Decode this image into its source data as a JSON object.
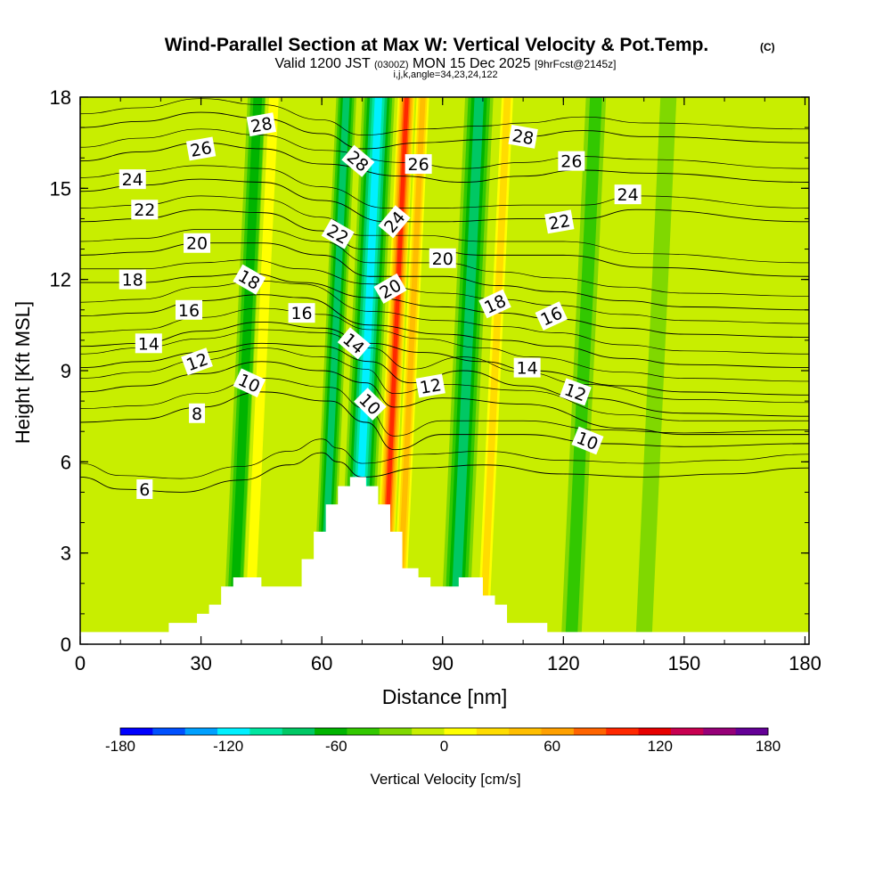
{
  "chart_data": {
    "type": "heatmap",
    "title": "Wind-Parallel Section at Max W: Vertical Velocity & Pot.Temp.",
    "title_mark": "(C)",
    "subtitle_main_a": "Valid 1200 JST",
    "subtitle_zulu": "(0300Z)",
    "subtitle_main_b": "MON 15 Dec 2025",
    "subtitle_fcst": "[9hrFcst@2145z]",
    "subtitle_indices": "i,j,k,angle=34,23,24,122",
    "xlabel": "Distance [nm]",
    "ylabel": "Height [Kft MSL]",
    "xlim": [
      0,
      181
    ],
    "ylim": [
      0,
      18
    ],
    "x_ticks": [
      0,
      30,
      60,
      90,
      120,
      150,
      180
    ],
    "y_ticks": [
      0,
      3,
      6,
      9,
      12,
      15,
      18
    ],
    "colorbar": {
      "label": "Vertical Velocity [cm/s]",
      "range": [
        -180,
        180
      ],
      "step": 20,
      "tick_values": [
        -180,
        -120,
        -60,
        0,
        60,
        120,
        180
      ],
      "colors": [
        "#0000ff",
        "#0050ff",
        "#00a0ff",
        "#00f0ff",
        "#00e6a0",
        "#00c864",
        "#00b400",
        "#32c800",
        "#80d800",
        "#c8ee00",
        "#ffff00",
        "#ffdc00",
        "#ffbe00",
        "#ffa000",
        "#ff6400",
        "#ff2800",
        "#e60000",
        "#c80050",
        "#960078",
        "#640096"
      ]
    },
    "wind_velocity_bands": [
      {
        "x_center": 41,
        "width": 5,
        "value": -55
      },
      {
        "x_center": 45,
        "width": 4,
        "value": 45
      },
      {
        "x_center": 63,
        "width": 5,
        "value": -70
      },
      {
        "x_center": 71,
        "width": 8,
        "value": -120
      },
      {
        "x_center": 78,
        "width": 5,
        "value": 140
      },
      {
        "x_center": 82,
        "width": 4,
        "value": 70
      },
      {
        "x_center": 96,
        "width": 7,
        "value": -70
      },
      {
        "x_center": 103,
        "width": 4,
        "value": 60
      },
      {
        "x_center": 125,
        "width": 5,
        "value": -30
      },
      {
        "x_center": 143,
        "width": 4,
        "value": -25
      }
    ],
    "terrain": [
      {
        "x": 0,
        "h": 0.4
      },
      {
        "x": 22,
        "h": 0.4
      },
      {
        "x": 22,
        "h": 0.7
      },
      {
        "x": 29,
        "h": 0.7
      },
      {
        "x": 29,
        "h": 1.0
      },
      {
        "x": 32,
        "h": 1.0
      },
      {
        "x": 32,
        "h": 1.3
      },
      {
        "x": 35,
        "h": 1.3
      },
      {
        "x": 35,
        "h": 1.9
      },
      {
        "x": 38,
        "h": 1.9
      },
      {
        "x": 38,
        "h": 2.2
      },
      {
        "x": 45,
        "h": 2.2
      },
      {
        "x": 45,
        "h": 1.9
      },
      {
        "x": 55,
        "h": 1.9
      },
      {
        "x": 55,
        "h": 2.8
      },
      {
        "x": 58,
        "h": 2.8
      },
      {
        "x": 58,
        "h": 3.7
      },
      {
        "x": 61,
        "h": 3.7
      },
      {
        "x": 61,
        "h": 4.6
      },
      {
        "x": 64,
        "h": 4.6
      },
      {
        "x": 64,
        "h": 5.2
      },
      {
        "x": 67,
        "h": 5.2
      },
      {
        "x": 67,
        "h": 5.5
      },
      {
        "x": 71,
        "h": 5.5
      },
      {
        "x": 71,
        "h": 5.2
      },
      {
        "x": 74,
        "h": 5.2
      },
      {
        "x": 74,
        "h": 4.6
      },
      {
        "x": 77,
        "h": 4.6
      },
      {
        "x": 77,
        "h": 3.7
      },
      {
        "x": 80,
        "h": 3.7
      },
      {
        "x": 80,
        "h": 2.5
      },
      {
        "x": 84,
        "h": 2.5
      },
      {
        "x": 84,
        "h": 2.2
      },
      {
        "x": 87,
        "h": 2.2
      },
      {
        "x": 87,
        "h": 1.9
      },
      {
        "x": 94,
        "h": 1.9
      },
      {
        "x": 94,
        "h": 2.2
      },
      {
        "x": 100,
        "h": 2.2
      },
      {
        "x": 100,
        "h": 1.6
      },
      {
        "x": 103,
        "h": 1.6
      },
      {
        "x": 103,
        "h": 1.3
      },
      {
        "x": 106,
        "h": 1.3
      },
      {
        "x": 106,
        "h": 0.7
      },
      {
        "x": 116,
        "h": 0.7
      },
      {
        "x": 116,
        "h": 0.4
      },
      {
        "x": 181,
        "h": 0.4
      }
    ],
    "theta_contours": [
      {
        "value": 6,
        "points": [
          [
            0,
            5.5
          ],
          [
            10,
            5.1
          ],
          [
            25,
            5.0
          ],
          [
            40,
            5.4
          ],
          [
            52,
            5.9
          ],
          [
            60,
            6.3
          ],
          [
            64,
            6.0
          ],
          [
            70,
            5.5
          ],
          [
            85,
            5.8
          ],
          [
            100,
            5.9
          ],
          [
            120,
            5.6
          ],
          [
            140,
            5.5
          ],
          [
            160,
            5.6
          ],
          [
            181,
            5.8
          ]
        ]
      },
      {
        "value": 8,
        "points": [
          [
            0,
            7.3
          ],
          [
            15,
            7.4
          ],
          [
            30,
            7.8
          ],
          [
            45,
            8.3
          ],
          [
            62,
            8.0
          ],
          [
            71,
            7.3
          ],
          [
            78,
            6.4
          ],
          [
            90,
            6.9
          ],
          [
            110,
            6.9
          ],
          [
            130,
            6.6
          ],
          [
            150,
            6.5
          ],
          [
            181,
            6.6
          ]
        ]
      },
      {
        "value": 10,
        "points": [
          [
            0,
            8.3
          ],
          [
            15,
            8.5
          ],
          [
            30,
            8.9
          ],
          [
            45,
            9.3
          ],
          [
            60,
            9.0
          ],
          [
            71,
            8.6
          ],
          [
            78,
            7.8
          ],
          [
            90,
            8.1
          ],
          [
            110,
            7.9
          ],
          [
            135,
            7.1
          ],
          [
            150,
            6.9
          ],
          [
            181,
            6.9
          ]
        ]
      },
      {
        "value": 12,
        "points": [
          [
            0,
            9.1
          ],
          [
            15,
            9.3
          ],
          [
            30,
            9.6
          ],
          [
            45,
            9.9
          ],
          [
            60,
            9.8
          ],
          [
            72,
            9.3
          ],
          [
            82,
            8.6
          ],
          [
            95,
            9.0
          ],
          [
            110,
            8.5
          ],
          [
            125,
            8.1
          ],
          [
            150,
            7.6
          ],
          [
            181,
            7.5
          ]
        ]
      },
      {
        "value": 14,
        "points": [
          [
            0,
            9.8
          ],
          [
            15,
            9.9
          ],
          [
            30,
            10.3
          ],
          [
            45,
            10.6
          ],
          [
            60,
            10.4
          ],
          [
            72,
            9.9
          ],
          [
            85,
            9.6
          ],
          [
            100,
            9.3
          ],
          [
            112,
            9.0
          ],
          [
            135,
            8.5
          ],
          [
            150,
            8.3
          ],
          [
            181,
            8.2
          ]
        ]
      },
      {
        "value": 16,
        "points": [
          [
            0,
            10.8
          ],
          [
            15,
            10.9
          ],
          [
            30,
            11.3
          ],
          [
            45,
            11.5
          ],
          [
            55,
            11.4
          ],
          [
            72,
            10.5
          ],
          [
            90,
            10.2
          ],
          [
            105,
            10.0
          ],
          [
            118,
            9.8
          ],
          [
            135,
            9.4
          ],
          [
            150,
            9.2
          ],
          [
            181,
            9.1
          ]
        ]
      },
      {
        "value": 18,
        "points": [
          [
            0,
            11.9
          ],
          [
            15,
            11.9
          ],
          [
            30,
            12.1
          ],
          [
            42,
            12.2
          ],
          [
            55,
            11.9
          ],
          [
            72,
            11.4
          ],
          [
            90,
            11.1
          ],
          [
            104,
            10.9
          ],
          [
            118,
            10.7
          ],
          [
            135,
            10.4
          ],
          [
            150,
            10.2
          ],
          [
            181,
            10.1
          ]
        ]
      },
      {
        "value": 20,
        "points": [
          [
            0,
            12.8
          ],
          [
            15,
            12.9
          ],
          [
            30,
            13.2
          ],
          [
            45,
            13.2
          ],
          [
            60,
            12.8
          ],
          [
            72,
            12.1
          ],
          [
            90,
            12.1
          ],
          [
            104,
            11.8
          ],
          [
            118,
            11.6
          ],
          [
            135,
            11.3
          ],
          [
            150,
            11.1
          ],
          [
            181,
            11.0
          ]
        ]
      },
      {
        "value": 22,
        "points": [
          [
            0,
            13.9
          ],
          [
            15,
            14.0
          ],
          [
            30,
            14.3
          ],
          [
            45,
            14.2
          ],
          [
            60,
            13.6
          ],
          [
            70,
            13.0
          ],
          [
            85,
            13.0
          ],
          [
            100,
            12.8
          ],
          [
            120,
            12.8
          ],
          [
            140,
            12.4
          ],
          [
            181,
            12.1
          ]
        ]
      },
      {
        "value": 24,
        "points": [
          [
            0,
            14.9
          ],
          [
            15,
            15.1
          ],
          [
            30,
            15.3
          ],
          [
            45,
            15.2
          ],
          [
            60,
            14.6
          ],
          [
            76,
            13.9
          ],
          [
            90,
            13.9
          ],
          [
            110,
            14.0
          ],
          [
            125,
            14.0
          ],
          [
            138,
            14.3
          ],
          [
            181,
            13.9
          ]
        ]
      },
      {
        "value": 26,
        "points": [
          [
            0,
            15.9
          ],
          [
            15,
            16.2
          ],
          [
            30,
            16.5
          ],
          [
            45,
            16.3
          ],
          [
            60,
            15.8
          ],
          [
            80,
            15.4
          ],
          [
            95,
            15.2
          ],
          [
            110,
            15.4
          ],
          [
            124,
            15.6
          ],
          [
            140,
            15.5
          ],
          [
            181,
            15.2
          ]
        ]
      },
      {
        "value": 28,
        "points": [
          [
            0,
            17.0
          ],
          [
            15,
            17.2
          ],
          [
            30,
            17.5
          ],
          [
            45,
            17.3
          ],
          [
            60,
            16.8
          ],
          [
            70,
            16.3
          ],
          [
            85,
            16.5
          ],
          [
            100,
            16.6
          ],
          [
            110,
            16.7
          ],
          [
            125,
            16.9
          ],
          [
            140,
            16.7
          ],
          [
            181,
            16.5
          ]
        ]
      }
    ],
    "contour_labels": [
      {
        "text": "6",
        "x": 16,
        "y": 5.1,
        "angle": 0
      },
      {
        "text": "8",
        "x": 29,
        "y": 7.6,
        "angle": 0
      },
      {
        "text": "10",
        "x": 42,
        "y": 8.6,
        "angle": 25
      },
      {
        "text": "10",
        "x": 72,
        "y": 7.9,
        "angle": 45
      },
      {
        "text": "10",
        "x": 126,
        "y": 6.7,
        "angle": 22
      },
      {
        "text": "12",
        "x": 29,
        "y": 9.3,
        "angle": -20
      },
      {
        "text": "12",
        "x": 87,
        "y": 8.5,
        "angle": -10
      },
      {
        "text": "12",
        "x": 123,
        "y": 8.3,
        "angle": 20
      },
      {
        "text": "14",
        "x": 17,
        "y": 9.9,
        "angle": 0
      },
      {
        "text": "14",
        "x": 68,
        "y": 9.9,
        "angle": 40
      },
      {
        "text": "14",
        "x": 111,
        "y": 9.1,
        "angle": 0
      },
      {
        "text": "16",
        "x": 27,
        "y": 11.0,
        "angle": 0
      },
      {
        "text": "16",
        "x": 55,
        "y": 10.9,
        "angle": 0
      },
      {
        "text": "16",
        "x": 117,
        "y": 10.8,
        "angle": -25
      },
      {
        "text": "18",
        "x": 13,
        "y": 12.0,
        "angle": 0
      },
      {
        "text": "18",
        "x": 42,
        "y": 12.0,
        "angle": 30
      },
      {
        "text": "18",
        "x": 103,
        "y": 11.2,
        "angle": -25
      },
      {
        "text": "20",
        "x": 29,
        "y": 13.2,
        "angle": 0
      },
      {
        "text": "20",
        "x": 77,
        "y": 11.7,
        "angle": -30
      },
      {
        "text": "20",
        "x": 90,
        "y": 12.7,
        "angle": 0
      },
      {
        "text": "22",
        "x": 16,
        "y": 14.3,
        "angle": 0
      },
      {
        "text": "22",
        "x": 64,
        "y": 13.5,
        "angle": 30
      },
      {
        "text": "22",
        "x": 119,
        "y": 13.9,
        "angle": -10
      },
      {
        "text": "24",
        "x": 13,
        "y": 15.3,
        "angle": 0
      },
      {
        "text": "24",
        "x": 78,
        "y": 13.9,
        "angle": -50
      },
      {
        "text": "24",
        "x": 136,
        "y": 14.8,
        "angle": 0
      },
      {
        "text": "26",
        "x": 30,
        "y": 16.3,
        "angle": -10
      },
      {
        "text": "26",
        "x": 84,
        "y": 15.8,
        "angle": 0
      },
      {
        "text": "26",
        "x": 122,
        "y": 15.9,
        "angle": 0
      },
      {
        "text": "28",
        "x": 45,
        "y": 17.1,
        "angle": -10
      },
      {
        "text": "28",
        "x": 69,
        "y": 15.9,
        "angle": 40
      },
      {
        "text": "28",
        "x": 110,
        "y": 16.7,
        "angle": 10
      }
    ]
  }
}
